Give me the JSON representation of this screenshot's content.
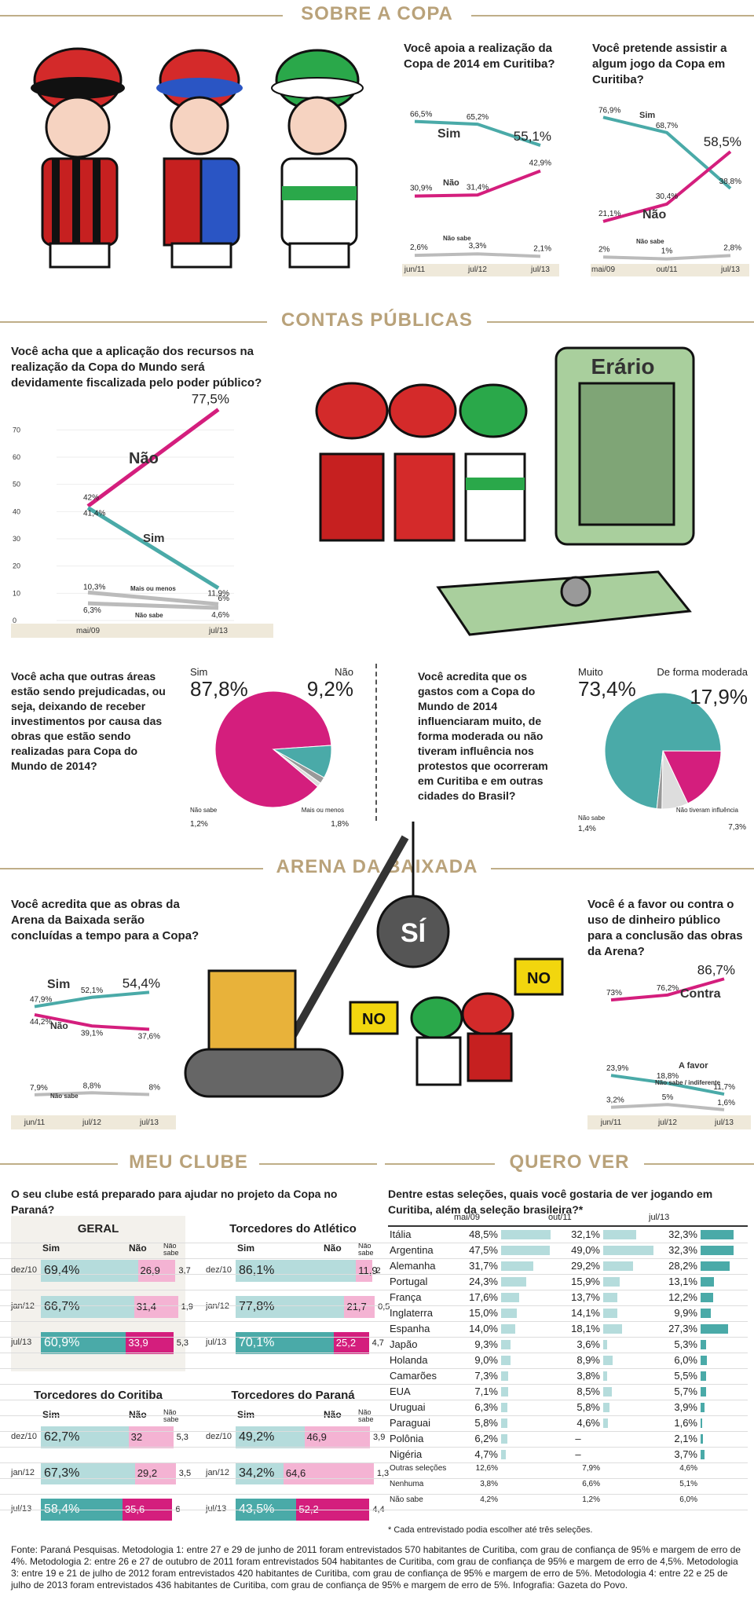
{
  "sections": {
    "copa": "SOBRE A COPA",
    "contas": "CONTAS PÚBLICAS",
    "arena": "ARENA DA BAIXADA",
    "clube": "MEU CLUBE",
    "quero": "QUERO VER"
  },
  "colors": {
    "teal": "#4aaaa8",
    "magenta": "#d41e7d",
    "gray": "#bbbbbb",
    "light_teal": "#b5dcdc",
    "light_pink": "#f4b3d3",
    "gold": "#b9a27a"
  },
  "icons": {
    "erario_safe": "safe-icon",
    "wrecking_ball": "wrecking-ball-icon",
    "no_sign": "no-sign-icon"
  },
  "illustration_text": {
    "erario": "Erário",
    "si": "SÍ",
    "no": "NO"
  },
  "chart_data": [
    {
      "id": "apoia",
      "type": "line",
      "title": "Você apoia a realização da Copa de 2014 em Curitiba?",
      "x": [
        "jun/11",
        "jul/12",
        "jul/13"
      ],
      "series": [
        {
          "name": "Sim",
          "values": [
            66.5,
            65.2,
            55.1
          ],
          "labels": [
            "66,5%",
            "65,2%",
            "55,1%"
          ]
        },
        {
          "name": "Não",
          "values": [
            30.9,
            31.4,
            42.9
          ],
          "labels": [
            "30,9%",
            "31,4%",
            "42,9%"
          ]
        },
        {
          "name": "Não sabe",
          "values": [
            2.6,
            3.3,
            2.1
          ],
          "labels": [
            "2,6%",
            "3,3%",
            "2,1%"
          ]
        }
      ]
    },
    {
      "id": "assistir",
      "type": "line",
      "title": "Você pretende assistir a algum jogo da Copa em Curitiba?",
      "x": [
        "mai/09",
        "out/11",
        "jul/13"
      ],
      "series": [
        {
          "name": "Sim",
          "values": [
            76.9,
            68.7,
            38.8
          ],
          "labels": [
            "76,9%",
            "68,7%",
            "38,8%"
          ]
        },
        {
          "name": "Não",
          "values": [
            21.1,
            30.4,
            58.5
          ],
          "labels": [
            "21,1%",
            "30,4%",
            "58,5%"
          ]
        },
        {
          "name": "Não sabe",
          "values": [
            2,
            1,
            2.8
          ],
          "labels": [
            "2%",
            "1%",
            "2,8%"
          ]
        }
      ]
    },
    {
      "id": "fiscalizada",
      "type": "line",
      "title": "Você acha que a aplicação dos recursos na realização da Copa do Mundo será devidamente fiscalizada pelo poder público?",
      "x": [
        "mai/09",
        "jul/13"
      ],
      "y_ticks": [
        "0",
        "10",
        "20",
        "30",
        "40",
        "50",
        "60",
        "70"
      ],
      "ylim": [
        0,
        70
      ],
      "series": [
        {
          "name": "Não",
          "values": [
            42,
            77.5
          ],
          "labels": [
            "42%",
            "77,5%"
          ]
        },
        {
          "name": "Sim",
          "values": [
            41.4,
            11.9
          ],
          "labels": [
            "41,4%",
            "11,9%"
          ]
        },
        {
          "name": "Mais ou menos",
          "values": [
            10.3,
            6
          ],
          "labels": [
            "10,3%",
            "6%"
          ]
        },
        {
          "name": "Não sabe",
          "values": [
            6.3,
            4.6
          ],
          "labels": [
            "6,3%",
            "4,6%"
          ]
        }
      ]
    },
    {
      "id": "prejudicadas",
      "type": "pie",
      "title": "Você acha que outras áreas estão sendo prejudicadas, ou seja, deixando de receber investimentos por causa das obras que estão sendo realizadas para Copa do Mundo de 2014?",
      "slices": [
        {
          "name": "Sim",
          "value": 87.8,
          "label": "87,8%"
        },
        {
          "name": "Não",
          "value": 9.2,
          "label": "9,2%"
        },
        {
          "name": "Mais ou menos",
          "value": 1.8,
          "label": "1,8%"
        },
        {
          "name": "Não sabe",
          "value": 1.2,
          "label": "1,2%"
        }
      ]
    },
    {
      "id": "protestos",
      "type": "pie",
      "title": "Você acredita que os gastos com a Copa do Mundo de 2014 influenciaram muito, de forma moderada ou não tiveram influência nos protestos que ocorreram em Curitiba e em outras cidades do Brasil?",
      "slices": [
        {
          "name": "Muito",
          "value": 73.4,
          "label": "73,4%"
        },
        {
          "name": "De forma moderada",
          "value": 17.9,
          "label": "17,9%"
        },
        {
          "name": "Não tiveram influência",
          "value": 7.3,
          "label": "7,3%"
        },
        {
          "name": "Não sabe",
          "value": 1.4,
          "label": "1,4%"
        }
      ]
    },
    {
      "id": "arena_tempo",
      "type": "line",
      "title": "Você acredita que as obras da Arena da Baixada serão concluídas a tempo para a Copa?",
      "x": [
        "jun/11",
        "jul/12",
        "jul/13"
      ],
      "series": [
        {
          "name": "Sim",
          "values": [
            47.9,
            52.1,
            54.4
          ],
          "labels": [
            "47,9%",
            "52,1%",
            "54,4%"
          ]
        },
        {
          "name": "Não",
          "values": [
            44.2,
            39.1,
            37.6
          ],
          "labels": [
            "44,2%",
            "39,1%",
            "37,6%"
          ]
        },
        {
          "name": "Não sabe",
          "values": [
            7.9,
            8.8,
            8
          ],
          "labels": [
            "7,9%",
            "8,8%",
            "8%"
          ]
        }
      ]
    },
    {
      "id": "dinheiro_publico",
      "type": "line",
      "title": "Você é a favor ou contra o uso de dinheiro público para a conclusão das obras da Arena?",
      "x": [
        "jun/11",
        "jul/12",
        "jul/13"
      ],
      "series": [
        {
          "name": "Contra",
          "values": [
            73,
            76.2,
            86.7
          ],
          "labels": [
            "73%",
            "76,2%",
            "86,7%"
          ]
        },
        {
          "name": "A favor",
          "values": [
            23.9,
            18.8,
            11.7
          ],
          "labels": [
            "23,9%",
            "18,8%",
            "11,7%"
          ]
        },
        {
          "name": "Não sabe / indiferente",
          "values": [
            3.2,
            5,
            1.6
          ],
          "labels": [
            "3,2%",
            "5%",
            "1,6%"
          ]
        }
      ]
    },
    {
      "id": "meu_clube",
      "type": "bar",
      "title": "O seu clube está preparado para ajudar no projeto da Copa no Paraná?",
      "columns": [
        "Sim",
        "Não",
        "Não sabe"
      ],
      "groups": [
        {
          "name": "GERAL",
          "rows": [
            {
              "date": "dez/10",
              "sim": 69.4,
              "nao": 26.9,
              "ns": 3.7,
              "l": [
                "69,4%",
                "26,9",
                "3,7"
              ]
            },
            {
              "date": "jan/12",
              "sim": 66.7,
              "nao": 31.4,
              "ns": 1.9,
              "l": [
                "66,7%",
                "31,4",
                "1,9"
              ]
            },
            {
              "date": "jul/13",
              "sim": 60.9,
              "nao": 33.9,
              "ns": 5.3,
              "l": [
                "60,9%",
                "33,9",
                "5,3"
              ]
            }
          ]
        },
        {
          "name": "Torcedores do Atlético",
          "rows": [
            {
              "date": "dez/10",
              "sim": 86.1,
              "nao": 11.9,
              "ns": 2,
              "l": [
                "86,1%",
                "11,9",
                "2"
              ]
            },
            {
              "date": "jan/12",
              "sim": 77.8,
              "nao": 21.7,
              "ns": 0.5,
              "l": [
                "77,8%",
                "21,7",
                "0,5"
              ]
            },
            {
              "date": "jul/13",
              "sim": 70.1,
              "nao": 25.2,
              "ns": 4.7,
              "l": [
                "70,1%",
                "25,2",
                "4,7"
              ]
            }
          ]
        },
        {
          "name": "Torcedores do Coritiba",
          "rows": [
            {
              "date": "dez/10",
              "sim": 62.7,
              "nao": 32,
              "ns": 5.3,
              "l": [
                "62,7%",
                "32",
                "5,3"
              ]
            },
            {
              "date": "jan/12",
              "sim": 67.3,
              "nao": 29.2,
              "ns": 3.5,
              "l": [
                "67,3%",
                "29,2",
                "3,5"
              ]
            },
            {
              "date": "jul/13",
              "sim": 58.4,
              "nao": 35.6,
              "ns": 6,
              "l": [
                "58,4%",
                "35,6",
                "6"
              ]
            }
          ]
        },
        {
          "name": "Torcedores do Paraná",
          "rows": [
            {
              "date": "dez/10",
              "sim": 49.2,
              "nao": 46.9,
              "ns": 3.9,
              "l": [
                "49,2%",
                "46,9",
                "3,9"
              ]
            },
            {
              "date": "jan/12",
              "sim": 34.2,
              "nao": 64.6,
              "ns": 1.3,
              "l": [
                "34,2%",
                "64,6",
                "1,3"
              ]
            },
            {
              "date": "jul/13",
              "sim": 43.5,
              "nao": 52.2,
              "ns": 4.4,
              "l": [
                "43,5%",
                "52,2",
                "4,4"
              ]
            }
          ]
        }
      ]
    },
    {
      "id": "quero_ver",
      "type": "table",
      "title": "Dentre estas seleções, quais você gostaria de ver jogando em Curitiba, além da seleção brasileira?*",
      "columns": [
        "mai/09",
        "out/11",
        "jul/13"
      ],
      "rows": [
        {
          "name": "Itália",
          "v": [
            48.5,
            32.1,
            32.3
          ],
          "l": [
            "48,5%",
            "32,1%",
            "32,3%"
          ]
        },
        {
          "name": "Argentina",
          "v": [
            47.5,
            49.0,
            32.3
          ],
          "l": [
            "47,5%",
            "49,0%",
            "32,3%"
          ]
        },
        {
          "name": "Alemanha",
          "v": [
            31.7,
            29.2,
            28.2
          ],
          "l": [
            "31,7%",
            "29,2%",
            "28,2%"
          ]
        },
        {
          "name": "Portugal",
          "v": [
            24.3,
            15.9,
            13.1
          ],
          "l": [
            "24,3%",
            "15,9%",
            "13,1%"
          ]
        },
        {
          "name": "França",
          "v": [
            17.6,
            13.7,
            12.2
          ],
          "l": [
            "17,6%",
            "13,7%",
            "12,2%"
          ]
        },
        {
          "name": "Inglaterra",
          "v": [
            15.0,
            14.1,
            9.9
          ],
          "l": [
            "15,0%",
            "14,1%",
            "9,9%"
          ]
        },
        {
          "name": "Espanha",
          "v": [
            14.0,
            18.1,
            27.3
          ],
          "l": [
            "14,0%",
            "18,1%",
            "27,3%"
          ]
        },
        {
          "name": "Japão",
          "v": [
            9.3,
            3.6,
            5.3
          ],
          "l": [
            "9,3%",
            "3,6%",
            "5,3%"
          ]
        },
        {
          "name": "Holanda",
          "v": [
            9.0,
            8.9,
            6.0
          ],
          "l": [
            "9,0%",
            "8,9%",
            "6,0%"
          ]
        },
        {
          "name": "Camarões",
          "v": [
            7.3,
            3.8,
            5.5
          ],
          "l": [
            "7,3%",
            "3,8%",
            "5,5%"
          ]
        },
        {
          "name": "EUA",
          "v": [
            7.1,
            8.5,
            5.7
          ],
          "l": [
            "7,1%",
            "8,5%",
            "5,7%"
          ]
        },
        {
          "name": "Uruguai",
          "v": [
            6.3,
            5.8,
            3.9
          ],
          "l": [
            "6,3%",
            "5,8%",
            "3,9%"
          ]
        },
        {
          "name": "Paraguai",
          "v": [
            5.8,
            4.6,
            1.6
          ],
          "l": [
            "5,8%",
            "4,6%",
            "1,6%"
          ]
        },
        {
          "name": "Polônia",
          "v": [
            6.2,
            null,
            2.1
          ],
          "l": [
            "6,2%",
            "–",
            "2,1%"
          ]
        },
        {
          "name": "Nigéria",
          "v": [
            4.7,
            null,
            3.7
          ],
          "l": [
            "4,7%",
            "–",
            "3,7%"
          ]
        },
        {
          "name": "Outras seleções",
          "v": [
            null,
            null,
            null
          ],
          "l": [
            "12,6%",
            "7,9%",
            "4,6%"
          ],
          "small": true
        },
        {
          "name": "Nenhuma",
          "v": [
            null,
            null,
            null
          ],
          "l": [
            "3,8%",
            "6,6%",
            "5,1%"
          ],
          "small": true
        },
        {
          "name": "Não sabe",
          "v": [
            null,
            null,
            null
          ],
          "l": [
            "4,2%",
            "1,2%",
            "6,0%"
          ],
          "small": true
        }
      ],
      "note": "* Cada entrevistado podia escolher até três seleções."
    }
  ],
  "footer": "Fonte: Paraná Pesquisas. Metodologia 1: entre 27 e 29 de junho de 2011 foram entrevistados 570 habitantes de Curitiba, com grau de confiança de 95% e margem de erro de 4%. Metodologia 2: entre 26 e 27 de outubro de 2011 foram entrevistados 504 habitantes de Curitiba, com grau de confiança de 95% e margem de erro de 4,5%. Metodologia 3: entre 19 e 21 de julho de 2012 foram entrevistados 420 habitantes de Curitiba, com grau de confiança de 95% e margem de erro de 5%. Metodologia 4: entre 22 e 25 de julho de 2013 foram entrevistados 436 habitantes de Curitiba, com grau de confiança de 95% e margem de erro de 5%. Infografia: Gazeta do Povo."
}
